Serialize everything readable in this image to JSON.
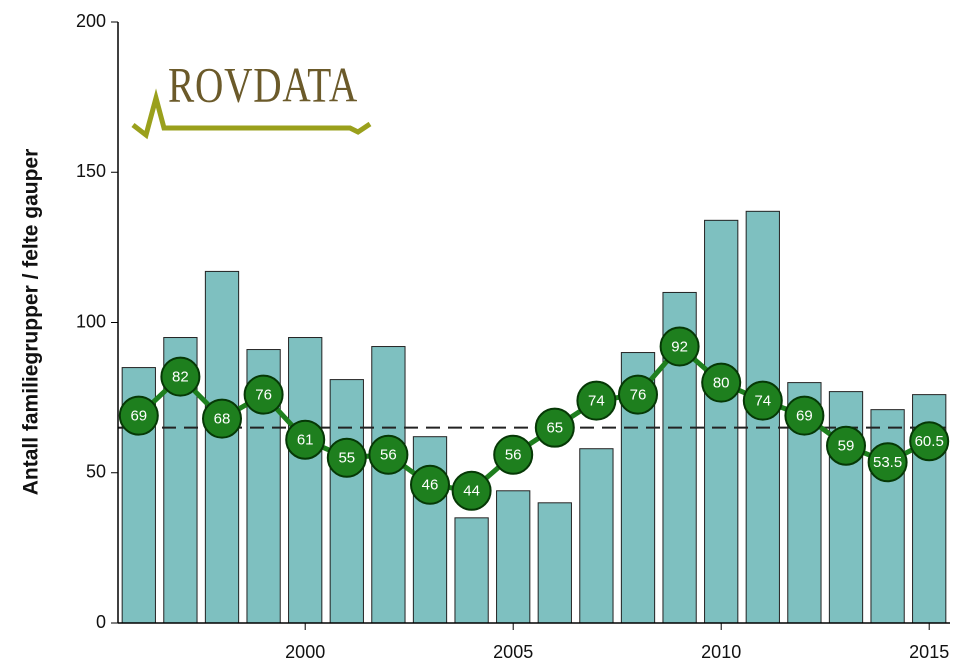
{
  "chart_data": {
    "type": "bar_line",
    "ylabel": "Antall familiegrupper / felte gauper",
    "logo": "ROVDATA",
    "x": [
      1996,
      1997,
      1998,
      1999,
      2000,
      2001,
      2002,
      2003,
      2004,
      2005,
      2006,
      2007,
      2008,
      2009,
      2010,
      2011,
      2012,
      2013,
      2014,
      2015
    ],
    "series": [
      {
        "type": "bar",
        "color": "#7ec0c0",
        "values": [
          85,
          95,
          117,
          91,
          95,
          81,
          92,
          62,
          35,
          44,
          40,
          58,
          90,
          110,
          134,
          137,
          80,
          77,
          71,
          76
        ]
      },
      {
        "type": "line",
        "color": "#1e7f1e",
        "values": [
          69,
          82,
          68,
          76,
          61,
          55,
          56,
          46,
          44,
          56,
          65,
          74,
          76,
          92,
          80,
          74,
          69,
          59,
          53.5,
          60.5
        ]
      }
    ],
    "reference_line": 65,
    "xlim": [
      1995.5,
      2015.5
    ],
    "xticks": [
      2000,
      2005,
      2010,
      2015
    ],
    "ylim": [
      0,
      200
    ],
    "yticks": [
      0,
      50,
      100,
      150,
      200
    ]
  }
}
